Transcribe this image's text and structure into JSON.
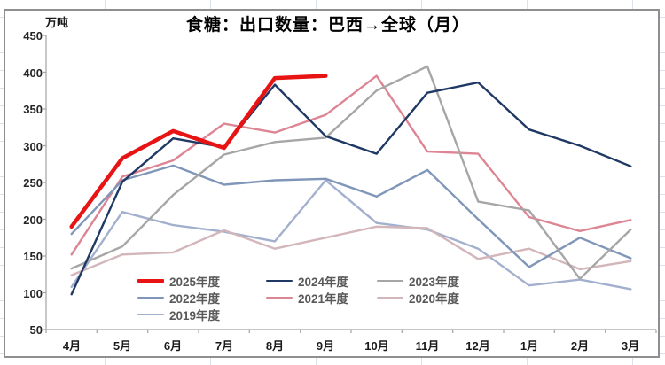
{
  "chart_data": {
    "type": "line",
    "title": "食糖：出口数量：巴西→全球（月）",
    "unit_label": "万吨",
    "x_labels": [
      "4月",
      "5月",
      "6月",
      "7月",
      "8月",
      "9月",
      "10月",
      "11月",
      "12月",
      "1月",
      "2月",
      "3月"
    ],
    "y_ticks": [
      450,
      400,
      350,
      300,
      250,
      200,
      150,
      100,
      50
    ],
    "ylim": [
      50,
      450
    ],
    "grid": false,
    "legend_position": "inside-bottom-left",
    "axis_color": "#a3a3a3",
    "series": [
      {
        "name": "2025年度",
        "color": "#e81414",
        "width": 4.5,
        "values": [
          190,
          283,
          320,
          297,
          392,
          395,
          null,
          null,
          null,
          null,
          null,
          null
        ]
      },
      {
        "name": "2024年度",
        "color": "#1f3864",
        "width": 2.4,
        "values": [
          98,
          251,
          310,
          298,
          383,
          313,
          289,
          372,
          386,
          322,
          300,
          272
        ]
      },
      {
        "name": "2023年度",
        "color": "#a6a6a6",
        "width": 2.4,
        "values": [
          133,
          163,
          233,
          288,
          305,
          311,
          375,
          408,
          224,
          212,
          119,
          186
        ]
      },
      {
        "name": "2022年度",
        "color": "#8096b8",
        "width": 2.4,
        "values": [
          180,
          253,
          273,
          247,
          253,
          255,
          231,
          267,
          200,
          135,
          175,
          147
        ]
      },
      {
        "name": "2021年度",
        "color": "#dd8593",
        "width": 2.4,
        "values": [
          152,
          258,
          280,
          330,
          318,
          342,
          395,
          292,
          289,
          203,
          184,
          199
        ]
      },
      {
        "name": "2020年度",
        "color": "#d2b6ba",
        "width": 2.4,
        "values": [
          124,
          152,
          155,
          185,
          160,
          175,
          190,
          188,
          146,
          160,
          132,
          143
        ]
      },
      {
        "name": "2019年度",
        "color": "#a2b0ce",
        "width": 2.4,
        "values": [
          108,
          210,
          192,
          183,
          170,
          253,
          195,
          186,
          160,
          110,
          118,
          105
        ]
      }
    ]
  }
}
